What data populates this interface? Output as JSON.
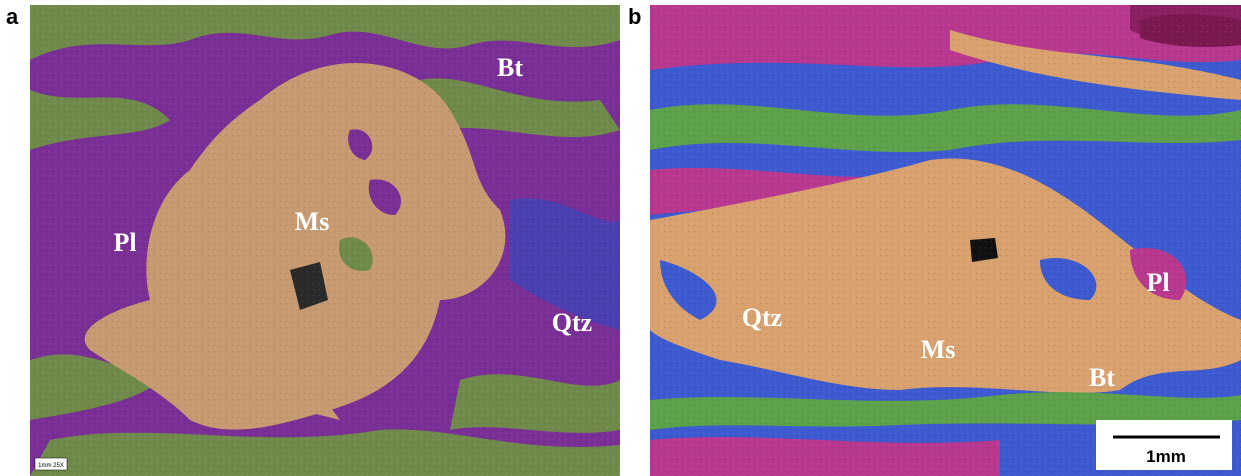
{
  "panels": [
    {
      "label": "a",
      "annotations": [
        "Bt",
        "Ms",
        "Pl",
        "Qtz"
      ],
      "scale_label": "1mm 25X"
    },
    {
      "label": "b",
      "annotations": [
        "Qtz",
        "Ms",
        "Pl",
        "Bt"
      ],
      "scale_label": "1mm"
    }
  ]
}
